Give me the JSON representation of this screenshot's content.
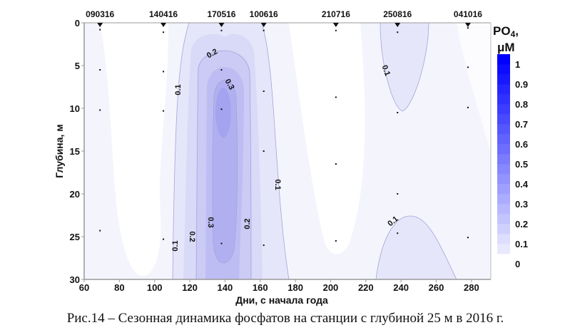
{
  "chart_data": {
    "type": "heatmap",
    "subtype": "filled-contour",
    "xlabel": "Дни, с начала года",
    "ylabel": "Глубина, м",
    "xlim": [
      60,
      291
    ],
    "ylim": [
      30,
      0
    ],
    "xticks": [
      60,
      80,
      100,
      120,
      140,
      160,
      180,
      200,
      220,
      240,
      260,
      280
    ],
    "yticks": [
      0,
      5,
      10,
      15,
      20,
      25,
      30
    ],
    "colorbar": {
      "title": "PO",
      "title_sub": "4",
      "title_suffix": ",",
      "unit": "μM",
      "ticks": [
        "1",
        "0.9",
        "0.8",
        "0.7",
        "0.6",
        "0.5",
        "0.4",
        "0.3",
        "0.2",
        "0.1",
        "0"
      ],
      "range": [
        0,
        1.05
      ],
      "step": 0.05,
      "min_color": "#ffffff",
      "max_color": "#0000ff"
    },
    "stations": [
      {
        "label": "090316",
        "day": 69,
        "depths": [
          0.8,
          5.5,
          10.2,
          24.3
        ]
      },
      {
        "label": "140416",
        "day": 105,
        "depths": [
          1.1,
          5.7,
          10.3,
          25.3
        ]
      },
      {
        "label": "170516",
        "day": 138,
        "depths": [
          0.9,
          5.5,
          10.1,
          25.8
        ]
      },
      {
        "label": "100616",
        "day": 162,
        "depths": [
          0.9,
          8.0,
          15.0,
          26.0
        ]
      },
      {
        "label": "210716",
        "day": 203,
        "depths": [
          0.9,
          8.7,
          16.5,
          25.5
        ]
      },
      {
        "label": "250816",
        "day": 238,
        "depths": [
          1.1,
          10.5,
          20.0,
          24.6
        ]
      },
      {
        "label": "041016",
        "day": 278,
        "depths": [
          0.6,
          5.2,
          9.9,
          25.1
        ]
      }
    ],
    "contour_labels": [
      "0.1",
      "0.2",
      "0.3",
      "0.1",
      "0.2",
      "0.3",
      "0.2",
      "0.1",
      "0.1",
      "0.1"
    ],
    "max_region": {
      "day": 138,
      "depth": 11,
      "value_approx": 0.37
    }
  },
  "caption": "Рис.14 – Сезонная динамика фосфатов на станции с глубиной 25 м в 2016 г."
}
